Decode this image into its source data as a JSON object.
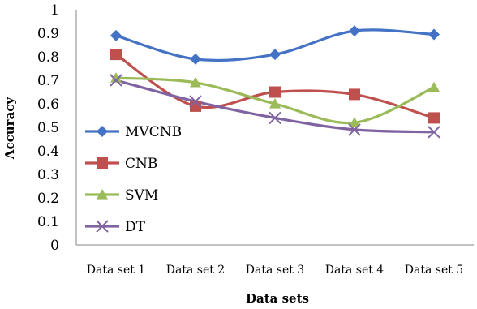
{
  "chart_data": {
    "type": "line",
    "xlabel": "Data sets",
    "ylabel": "Accuracy",
    "ylim": [
      0,
      1
    ],
    "yticks": [
      "0",
      "0.1",
      "0.2",
      "0.3",
      "0.4",
      "0.5",
      "0.6",
      "0.7",
      "0.8",
      "0.9",
      "1"
    ],
    "categories": [
      "Data set 1",
      "Data set 2",
      "Data set 3",
      "Data set 4",
      "Data set 5"
    ],
    "legend_position": "left-inside",
    "grid": false,
    "smooth": true,
    "series": [
      {
        "name": "MVCNB",
        "color": "#4472C4",
        "marker": "diamond",
        "values": [
          0.89,
          0.79,
          0.81,
          0.91,
          0.895
        ]
      },
      {
        "name": "CNB",
        "color": "#C0504D",
        "marker": "square",
        "values": [
          0.81,
          0.59,
          0.65,
          0.64,
          0.54
        ]
      },
      {
        "name": "SVM",
        "color": "#9BBB59",
        "marker": "triangle",
        "values": [
          0.71,
          0.69,
          0.6,
          0.52,
          0.67
        ]
      },
      {
        "name": "DT",
        "color": "#8064A2",
        "marker": "x",
        "values": [
          0.7,
          0.61,
          0.54,
          0.49,
          0.48
        ]
      }
    ]
  }
}
